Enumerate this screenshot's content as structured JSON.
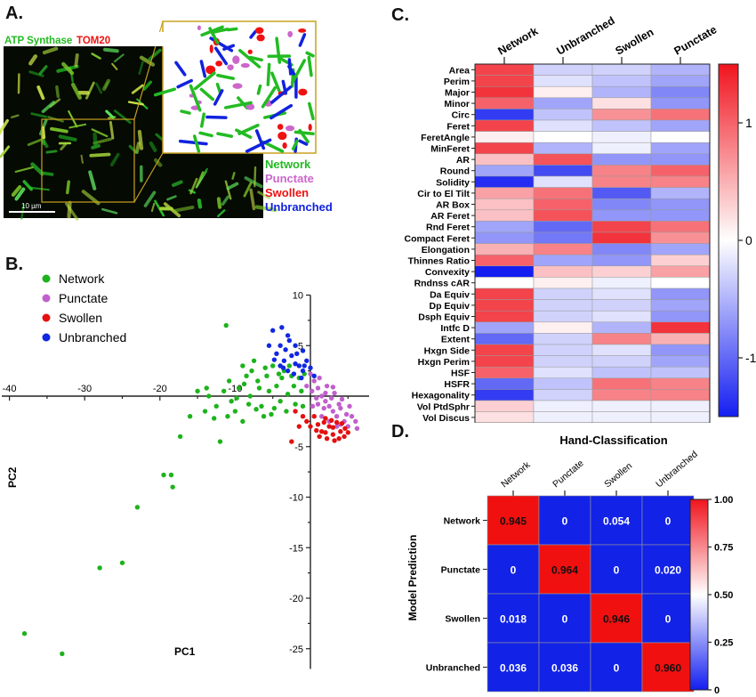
{
  "panels": {
    "a": "A.",
    "b": "B.",
    "c": "C.",
    "d": "D."
  },
  "panel_a": {
    "stain1": "ATP Synthase",
    "stain2": "TOM20",
    "scale_bar": "10 µm",
    "classes": [
      {
        "label": "Network",
        "color": "#22bb22"
      },
      {
        "label": "Punctate",
        "color": "#cc66cc"
      },
      {
        "label": "Swollen",
        "color": "#ee1111"
      },
      {
        "label": "Unbranched",
        "color": "#1122dd"
      }
    ]
  },
  "chart_data": [
    {
      "type": "scatter",
      "panel": "B",
      "xlabel": "PC1",
      "ylabel": "PC2",
      "xlim": [
        -40,
        10
      ],
      "ylim": [
        -27,
        10
      ],
      "xticks": [
        -40,
        -30,
        -20,
        -10
      ],
      "yticks": [
        10,
        5,
        -5,
        -10,
        -15,
        -20,
        -25
      ],
      "ytick_labels": [
        "10",
        "5",
        "-5",
        "-10",
        "-15",
        "-20",
        "-25"
      ],
      "legend_position": "top-left",
      "series": [
        {
          "name": "Network",
          "color": "#1db31d",
          "points": [
            [
              -38,
              -23.5
            ],
            [
              -33,
              -25.5
            ],
            [
              -28,
              -17
            ],
            [
              -25,
              -16.5
            ],
            [
              -23,
              -11
            ],
            [
              -19.5,
              -7.8
            ],
            [
              -18.5,
              -7.8
            ],
            [
              -18.3,
              -9
            ],
            [
              -17.3,
              -4
            ],
            [
              -16,
              -2
            ],
            [
              -12,
              -4.5
            ],
            [
              -11.2,
              7
            ],
            [
              -10.5,
              -0.5
            ],
            [
              -12.5,
              -1
            ],
            [
              -15,
              0.5
            ],
            [
              -14,
              -1.5
            ],
            [
              -13.5,
              0
            ],
            [
              -11,
              -2
            ],
            [
              -10,
              -1.5
            ],
            [
              -9.5,
              0.8
            ],
            [
              -9,
              -2.5
            ],
            [
              -8.5,
              2
            ],
            [
              -8,
              0
            ],
            [
              -7.5,
              3.5
            ],
            [
              -7,
              1.5
            ],
            [
              -6.5,
              -1
            ],
            [
              -6,
              2.8
            ],
            [
              -5.5,
              0.5
            ],
            [
              -5,
              3
            ],
            [
              -4.5,
              1
            ],
            [
              -4,
              -0.5
            ],
            [
              -3.5,
              2.5
            ],
            [
              -3,
              0.2
            ],
            [
              -2.5,
              2
            ],
            [
              -2,
              -0.8
            ],
            [
              -1.5,
              1.8
            ],
            [
              -9,
              3
            ],
            [
              -7.8,
              2.5
            ],
            [
              -6.8,
              0.8
            ],
            [
              -5.8,
              2
            ],
            [
              -4.8,
              -1.2
            ],
            [
              -3.8,
              1.8
            ],
            [
              -2.8,
              3
            ],
            [
              -8.2,
              -0.8
            ],
            [
              -10.8,
              1.5
            ],
            [
              -11.5,
              0.5
            ],
            [
              -12.8,
              -2.2
            ],
            [
              -13.8,
              0.8
            ],
            [
              -6.2,
              -2
            ],
            [
              -5.2,
              -1.8
            ],
            [
              -4.2,
              2.2
            ],
            [
              -3.2,
              -1.5
            ],
            [
              -2.2,
              1
            ],
            [
              -1.2,
              0.5
            ],
            [
              -0.8,
              2.2
            ],
            [
              -7.2,
              -1.3
            ],
            [
              -8.8,
              1.2
            ],
            [
              -9.8,
              -0.2
            ],
            [
              -1,
              -1
            ]
          ]
        },
        {
          "name": "Punctate",
          "color": "#c060cc",
          "points": [
            [
              0,
              2.2
            ],
            [
              0.5,
              1.5
            ],
            [
              1,
              0.8
            ],
            [
              1.5,
              0
            ],
            [
              2,
              -0.5
            ],
            [
              2.5,
              -1
            ],
            [
              3,
              -1.5
            ],
            [
              3.5,
              -2
            ],
            [
              4,
              -1.2
            ],
            [
              4.5,
              -2.5
            ],
            [
              5,
              -3
            ],
            [
              5.5,
              -2
            ],
            [
              0.2,
              0.5
            ],
            [
              0.8,
              -0.2
            ],
            [
              1.8,
              -1.2
            ],
            [
              2.8,
              -0.2
            ],
            [
              3.8,
              -0.8
            ],
            [
              4.8,
              -1.8
            ],
            [
              1.2,
              1.8
            ],
            [
              2.2,
              1
            ],
            [
              3.2,
              0.3
            ],
            [
              4.2,
              -0.3
            ],
            [
              5.2,
              -1
            ],
            [
              -0.5,
              1
            ],
            [
              0.3,
              -1
            ],
            [
              1.5,
              -2
            ],
            [
              2.5,
              -2.5
            ],
            [
              3.5,
              -3
            ],
            [
              4,
              -2.8
            ],
            [
              6,
              -2.5
            ],
            [
              6.2,
              -3.2
            ],
            [
              2,
              0.3
            ],
            [
              3,
              0.9
            ],
            [
              1,
              -0.8
            ]
          ]
        },
        {
          "name": "Swollen",
          "color": "#e31010",
          "points": [
            [
              0.5,
              -2
            ],
            [
              1,
              -2.8
            ],
            [
              1.5,
              -3.5
            ],
            [
              2,
              -2.2
            ],
            [
              2.5,
              -3
            ],
            [
              3,
              -3.8
            ],
            [
              3.5,
              -2.6
            ],
            [
              4,
              -3.5
            ],
            [
              4.5,
              -4
            ],
            [
              5,
              -3.6
            ],
            [
              0,
              -3
            ],
            [
              -0.5,
              -2.5
            ],
            [
              1.2,
              -4
            ],
            [
              2.2,
              -4.2
            ],
            [
              3.2,
              -4.4
            ],
            [
              -1,
              -2
            ],
            [
              -2,
              -1.5
            ],
            [
              -1.5,
              -3
            ],
            [
              0.8,
              -3.4
            ],
            [
              1.8,
              -2.6
            ],
            [
              2.8,
              -2.4
            ],
            [
              3.8,
              -4.2
            ],
            [
              4.2,
              -2.7
            ],
            [
              -2.5,
              -4.5
            ],
            [
              2,
              -3.6
            ],
            [
              3,
              -3.1
            ],
            [
              4.6,
              -3.2
            ]
          ]
        },
        {
          "name": "Unbranched",
          "color": "#1028e0",
          "points": [
            [
              -5,
              6.5
            ],
            [
              -4,
              5
            ],
            [
              -3,
              6
            ],
            [
              -2,
              5
            ],
            [
              -1,
              4.5
            ],
            [
              -3.5,
              3.5
            ],
            [
              -2.5,
              4
            ],
            [
              -1.5,
              3
            ],
            [
              -0.5,
              3.5
            ],
            [
              0,
              2.8
            ],
            [
              -4.5,
              4.2
            ],
            [
              -3,
              2.5
            ],
            [
              -2,
              3.2
            ],
            [
              -1,
              2.5
            ],
            [
              -4,
              3
            ],
            [
              -2.8,
              5.5
            ],
            [
              -1.8,
              4.2
            ],
            [
              -0.8,
              3
            ],
            [
              -3.8,
              6.8
            ],
            [
              -5.5,
              5
            ],
            [
              -2.2,
              2.2
            ],
            [
              -1.2,
              1.8
            ],
            [
              -4.8,
              3.6
            ],
            [
              -3.3,
              4.6
            ],
            [
              0.5,
              2
            ],
            [
              -3.6,
              2.8
            ]
          ]
        }
      ]
    },
    {
      "type": "heatmap",
      "panel": "C",
      "columns": [
        "Network",
        "Unbranched",
        "Swollen",
        "Punctate"
      ],
      "rows": [
        "Area",
        "Perim",
        "Major",
        "Minor",
        "Circ",
        "Feret",
        "FeretAngle",
        "MinFeret",
        "AR",
        "Round",
        "Solidity",
        "Cir to El Tilt",
        "AR Box",
        "AR Feret",
        "Rnd Feret",
        "Compact Feret",
        "Elongation",
        "Thinnes Ratio",
        "Convexity",
        "Rndnss cAR",
        "Da Equiv",
        "Dp Equiv",
        "Dsph Equiv",
        "Intfc D",
        "Extent",
        "Hxgn Side",
        "Hxgn Perim",
        "HSF",
        "HSFR",
        "Hexagonality",
        "Vol PtdSphr",
        "Vol Discus"
      ],
      "values": [
        [
          1.2,
          -0.3,
          -0.3,
          -0.5
        ],
        [
          1.2,
          -0.2,
          -0.4,
          -0.6
        ],
        [
          1.3,
          0.1,
          -0.5,
          -0.8
        ],
        [
          1.0,
          -0.6,
          0.2,
          -0.7
        ],
        [
          -1.3,
          -0.4,
          0.7,
          0.9
        ],
        [
          1.2,
          -0.2,
          -0.4,
          -0.6
        ],
        [
          0.1,
          0.0,
          -0.1,
          0.0
        ],
        [
          1.2,
          -0.5,
          -0.1,
          -0.6
        ],
        [
          0.4,
          1.1,
          -0.7,
          -0.7
        ],
        [
          -0.6,
          -1.2,
          0.8,
          1.0
        ],
        [
          -1.4,
          -0.2,
          0.8,
          0.8
        ],
        [
          0.6,
          0.9,
          -1.1,
          -0.5
        ],
        [
          0.4,
          1.0,
          -0.8,
          -0.7
        ],
        [
          0.4,
          1.1,
          -0.7,
          -0.7
        ],
        [
          -0.6,
          -1.0,
          1.2,
          0.9
        ],
        [
          -0.7,
          -0.9,
          1.3,
          0.7
        ],
        [
          0.5,
          0.8,
          -0.8,
          -0.6
        ],
        [
          1.0,
          -0.6,
          -0.7,
          0.3
        ],
        [
          -1.5,
          0.4,
          0.3,
          0.6
        ],
        [
          0.0,
          0.1,
          -0.1,
          0.0
        ],
        [
          1.2,
          -0.3,
          -0.2,
          -0.7
        ],
        [
          1.2,
          -0.3,
          -0.3,
          -0.6
        ],
        [
          1.2,
          -0.3,
          -0.2,
          -0.7
        ],
        [
          -0.6,
          0.1,
          -0.5,
          1.3
        ],
        [
          -1.0,
          -0.3,
          0.8,
          0.5
        ],
        [
          1.2,
          -0.3,
          -0.2,
          -0.7
        ],
        [
          1.2,
          -0.3,
          -0.3,
          -0.6
        ],
        [
          1.0,
          -0.2,
          -0.4,
          -0.4
        ],
        [
          -1.0,
          -0.4,
          0.9,
          0.8
        ],
        [
          -1.3,
          -0.3,
          0.8,
          0.8
        ],
        [
          0.3,
          -0.1,
          -0.1,
          -0.1
        ],
        [
          0.2,
          -0.1,
          -0.1,
          -0.1
        ]
      ],
      "colorbar": {
        "ticks": [
          1,
          0,
          -1
        ],
        "tick_labels": [
          "1",
          "0",
          "-1"
        ],
        "range": [
          -1.5,
          1.5
        ]
      }
    },
    {
      "type": "heatmap",
      "panel": "D",
      "title": "Hand-Classification",
      "ylabel": "Model Prediction",
      "columns": [
        "Network",
        "Punctate",
        "Swollen",
        "Unbranched"
      ],
      "rows": [
        "Network",
        "Punctate",
        "Swollen",
        "Unbranched"
      ],
      "values": [
        [
          0.945,
          0,
          0.054,
          0
        ],
        [
          0,
          0.964,
          0,
          0.02
        ],
        [
          0.018,
          0,
          0.946,
          0
        ],
        [
          0.036,
          0.036,
          0,
          0.96
        ]
      ],
      "cell_labels": [
        [
          "0.945",
          "0",
          "0.054",
          "0"
        ],
        [
          "0",
          "0.964",
          "0",
          "0.020"
        ],
        [
          "0.018",
          "0",
          "0.946",
          "0"
        ],
        [
          "0.036",
          "0.036",
          "0",
          "0.960"
        ]
      ],
      "colorbar": {
        "ticks": [
          1.0,
          0.75,
          0.5,
          0.25,
          0
        ],
        "tick_labels": [
          "1.00",
          "0.75",
          "0.50",
          "0.25",
          "0"
        ],
        "range": [
          0,
          1
        ]
      }
    }
  ]
}
